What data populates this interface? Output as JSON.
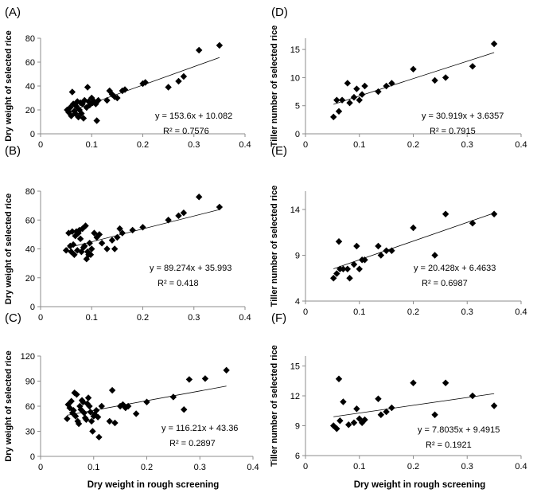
{
  "colors": {
    "marker": "#000000",
    "axis": "#8c8c8c",
    "trendline": "#000000"
  },
  "chart_data": [
    {
      "panel": "(A)",
      "type": "scatter",
      "ylabel": "Dry weight of selected rice",
      "xlabel": "",
      "xlim": [
        0,
        0.4
      ],
      "ylim": [
        0,
        80
      ],
      "xticks": [
        "0",
        "0.1",
        "0.2",
        "0.3",
        "0.4"
      ],
      "yticks": [
        "0",
        "20",
        "40",
        "60",
        "80"
      ],
      "equation": "y = 153.6x + 10.082",
      "r2": "R² = 0.7576",
      "trend": {
        "slope": 153.6,
        "intercept": 10.082
      },
      "points": [
        [
          0.052,
          20
        ],
        [
          0.055,
          18
        ],
        [
          0.058,
          22
        ],
        [
          0.06,
          15
        ],
        [
          0.062,
          35
        ],
        [
          0.064,
          25
        ],
        [
          0.066,
          19
        ],
        [
          0.068,
          17
        ],
        [
          0.07,
          23
        ],
        [
          0.072,
          27
        ],
        [
          0.074,
          14
        ],
        [
          0.076,
          20
        ],
        [
          0.078,
          26
        ],
        [
          0.08,
          17
        ],
        [
          0.082,
          25
        ],
        [
          0.084,
          13
        ],
        [
          0.086,
          28
        ],
        [
          0.09,
          22
        ],
        [
          0.092,
          39
        ],
        [
          0.094,
          27
        ],
        [
          0.096,
          24
        ],
        [
          0.1,
          30
        ],
        [
          0.102,
          26
        ],
        [
          0.105,
          27
        ],
        [
          0.108,
          25
        ],
        [
          0.11,
          11
        ],
        [
          0.113,
          28
        ],
        [
          0.13,
          28
        ],
        [
          0.135,
          36
        ],
        [
          0.14,
          33
        ],
        [
          0.145,
          31
        ],
        [
          0.15,
          30
        ],
        [
          0.16,
          36
        ],
        [
          0.165,
          37
        ],
        [
          0.2,
          42
        ],
        [
          0.205,
          43
        ],
        [
          0.25,
          39
        ],
        [
          0.27,
          44
        ],
        [
          0.28,
          48
        ],
        [
          0.31,
          70
        ],
        [
          0.35,
          74
        ]
      ]
    },
    {
      "panel": "(D)",
      "type": "scatter",
      "ylabel": "Tiller number of selected rice",
      "xlabel": "",
      "xlim": [
        0,
        0.4
      ],
      "ylim": [
        0,
        17
      ],
      "xticks": [
        "0",
        "0.1",
        "0.2",
        "0.3",
        "0.4"
      ],
      "yticks": [
        "0",
        "5",
        "10",
        "15"
      ],
      "equation": "y = 30.919x + 3.6357",
      "r2": "R² = 0.7915",
      "trend": {
        "slope": 30.919,
        "intercept": 3.6357
      },
      "points": [
        [
          0.052,
          3
        ],
        [
          0.058,
          6
        ],
        [
          0.062,
          4
        ],
        [
          0.068,
          6
        ],
        [
          0.078,
          9
        ],
        [
          0.082,
          5.5
        ],
        [
          0.09,
          6.5
        ],
        [
          0.095,
          8
        ],
        [
          0.1,
          6
        ],
        [
          0.105,
          7
        ],
        [
          0.11,
          8.5
        ],
        [
          0.135,
          7.5
        ],
        [
          0.15,
          8.5
        ],
        [
          0.16,
          9
        ],
        [
          0.2,
          11.5
        ],
        [
          0.24,
          9.5
        ],
        [
          0.26,
          10
        ],
        [
          0.31,
          12
        ],
        [
          0.35,
          16
        ]
      ]
    },
    {
      "panel": "(B)",
      "type": "scatter",
      "ylabel": "Dry weight of selected rice",
      "xlabel": "",
      "xlim": [
        0,
        0.4
      ],
      "ylim": [
        0,
        80
      ],
      "xticks": [
        "0",
        "0.1",
        "0.2",
        "0.3",
        "0.4"
      ],
      "yticks": [
        "0",
        "20",
        "40",
        "60",
        "80"
      ],
      "equation": "y = 89.274x + 35.993",
      "r2": "R² = 0.418",
      "trend": {
        "slope": 89.274,
        "intercept": 35.993
      },
      "points": [
        [
          0.05,
          39
        ],
        [
          0.055,
          51
        ],
        [
          0.058,
          42
        ],
        [
          0.06,
          38
        ],
        [
          0.062,
          52
        ],
        [
          0.064,
          43
        ],
        [
          0.066,
          36
        ],
        [
          0.068,
          49
        ],
        [
          0.07,
          52
        ],
        [
          0.072,
          39
        ],
        [
          0.074,
          51
        ],
        [
          0.076,
          53
        ],
        [
          0.078,
          47
        ],
        [
          0.08,
          38
        ],
        [
          0.082,
          54
        ],
        [
          0.084,
          41
        ],
        [
          0.086,
          42
        ],
        [
          0.088,
          56
        ],
        [
          0.09,
          33
        ],
        [
          0.092,
          38
        ],
        [
          0.094,
          36
        ],
        [
          0.096,
          44
        ],
        [
          0.098,
          36
        ],
        [
          0.1,
          40
        ],
        [
          0.105,
          51
        ],
        [
          0.11,
          48
        ],
        [
          0.115,
          50
        ],
        [
          0.12,
          44
        ],
        [
          0.13,
          40
        ],
        [
          0.14,
          46
        ],
        [
          0.145,
          40
        ],
        [
          0.15,
          48
        ],
        [
          0.155,
          54
        ],
        [
          0.16,
          51
        ],
        [
          0.18,
          53
        ],
        [
          0.2,
          55
        ],
        [
          0.25,
          60
        ],
        [
          0.27,
          63
        ],
        [
          0.28,
          65
        ],
        [
          0.31,
          76
        ],
        [
          0.35,
          69
        ]
      ]
    },
    {
      "panel": "(E)",
      "type": "scatter",
      "ylabel": "Tiller number of selected rice",
      "xlabel": "",
      "xlim": [
        0,
        0.4
      ],
      "ylim": [
        4,
        16
      ],
      "xticks": [
        "0",
        "0.1",
        "0.2",
        "0.3",
        "0.4"
      ],
      "yticks": [
        "4",
        "9",
        "14"
      ],
      "equation": "y = 20.428x + 6.4633",
      "r2": "R² = 0.6987",
      "trend": {
        "slope": 20.428,
        "intercept": 6.4633
      },
      "points": [
        [
          0.052,
          6.5
        ],
        [
          0.058,
          7
        ],
        [
          0.062,
          10.5
        ],
        [
          0.064,
          7.5
        ],
        [
          0.07,
          7.5
        ],
        [
          0.078,
          7.5
        ],
        [
          0.082,
          6.5
        ],
        [
          0.09,
          8
        ],
        [
          0.095,
          10
        ],
        [
          0.1,
          7.5
        ],
        [
          0.105,
          8.5
        ],
        [
          0.11,
          8.5
        ],
        [
          0.135,
          10
        ],
        [
          0.14,
          9
        ],
        [
          0.15,
          9.5
        ],
        [
          0.16,
          9.5
        ],
        [
          0.2,
          12
        ],
        [
          0.24,
          9
        ],
        [
          0.26,
          13.5
        ],
        [
          0.31,
          12.5
        ],
        [
          0.35,
          13.5
        ]
      ]
    },
    {
      "panel": "(C)",
      "type": "scatter",
      "ylabel": "Dry weight of selected rice",
      "xlabel": "Dry weight in rough screening",
      "xlim": [
        0,
        0.4
      ],
      "ylim": [
        0,
        120
      ],
      "xticks": [
        "0",
        "0.1",
        "0.2",
        "0.3",
        "0.4"
      ],
      "yticks": [
        "0",
        "30",
        "60",
        "90",
        "120"
      ],
      "equation": "y = 116.21x + 43.36",
      "r2": "R² = 0.2897",
      "trend": {
        "slope": 116.21,
        "intercept": 43.36
      },
      "points": [
        [
          0.05,
          45
        ],
        [
          0.052,
          62
        ],
        [
          0.055,
          58
        ],
        [
          0.058,
          66
        ],
        [
          0.06,
          52
        ],
        [
          0.062,
          55
        ],
        [
          0.064,
          76
        ],
        [
          0.066,
          48
        ],
        [
          0.068,
          74
        ],
        [
          0.07,
          42
        ],
        [
          0.072,
          39
        ],
        [
          0.074,
          60
        ],
        [
          0.076,
          56
        ],
        [
          0.078,
          67
        ],
        [
          0.08,
          65
        ],
        [
          0.082,
          52
        ],
        [
          0.084,
          46
        ],
        [
          0.086,
          44
        ],
        [
          0.088,
          63
        ],
        [
          0.09,
          70
        ],
        [
          0.092,
          60
        ],
        [
          0.094,
          53
        ],
        [
          0.096,
          42
        ],
        [
          0.098,
          30
        ],
        [
          0.1,
          48
        ],
        [
          0.102,
          50
        ],
        [
          0.105,
          55
        ],
        [
          0.108,
          47
        ],
        [
          0.11,
          23
        ],
        [
          0.115,
          60
        ],
        [
          0.13,
          42
        ],
        [
          0.135,
          79
        ],
        [
          0.14,
          40
        ],
        [
          0.15,
          60
        ],
        [
          0.155,
          62
        ],
        [
          0.16,
          58
        ],
        [
          0.165,
          60
        ],
        [
          0.18,
          51
        ],
        [
          0.2,
          65
        ],
        [
          0.25,
          71
        ],
        [
          0.27,
          56
        ],
        [
          0.28,
          92
        ],
        [
          0.31,
          93
        ],
        [
          0.35,
          103
        ]
      ]
    },
    {
      "panel": "(F)",
      "type": "scatter",
      "ylabel": "Tiller number of selected rice",
      "xlabel": "Dry weight in rough screening",
      "xlim": [
        0,
        0.4
      ],
      "ylim": [
        6,
        16
      ],
      "xticks": [
        "0",
        "0.1",
        "0.2",
        "0.3",
        "0.4"
      ],
      "yticks": [
        "6",
        "9",
        "12",
        "15"
      ],
      "equation": "y = 7.8035x + 9.4915",
      "r2": "R² = 0.1921",
      "trend": {
        "slope": 7.8035,
        "intercept": 9.4915
      },
      "points": [
        [
          0.052,
          9
        ],
        [
          0.058,
          8.7
        ],
        [
          0.062,
          13.7
        ],
        [
          0.064,
          9.5
        ],
        [
          0.07,
          11.4
        ],
        [
          0.08,
          9.1
        ],
        [
          0.09,
          9.3
        ],
        [
          0.095,
          10.7
        ],
        [
          0.1,
          9.7
        ],
        [
          0.105,
          9.3
        ],
        [
          0.11,
          9.6
        ],
        [
          0.135,
          11.7
        ],
        [
          0.14,
          10.1
        ],
        [
          0.15,
          10.4
        ],
        [
          0.16,
          10.8
        ],
        [
          0.2,
          13.3
        ],
        [
          0.24,
          10.1
        ],
        [
          0.26,
          13.3
        ],
        [
          0.31,
          12
        ],
        [
          0.35,
          11
        ]
      ]
    }
  ]
}
